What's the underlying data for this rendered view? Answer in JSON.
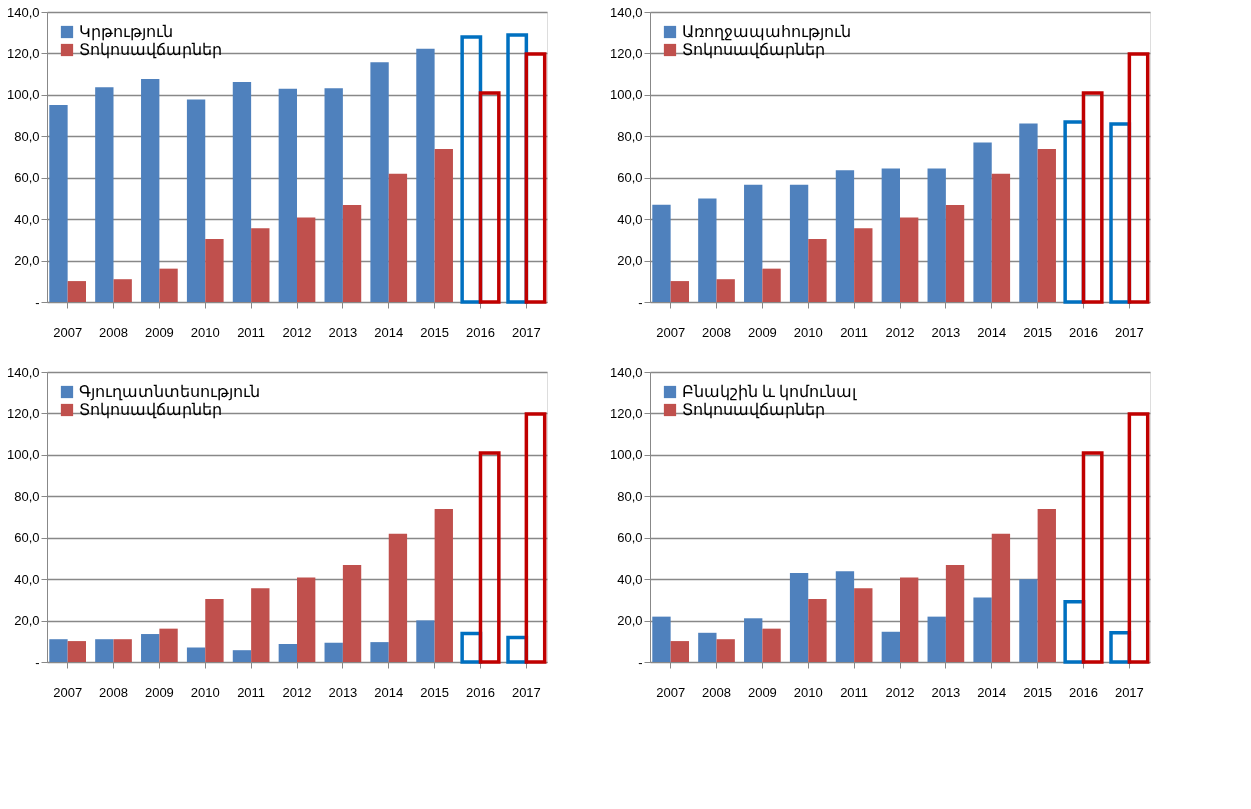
{
  "chart_data": [
    {
      "type": "bar",
      "categories": [
        "2007",
        "2008",
        "2009",
        "2010",
        "2011",
        "2012",
        "2013",
        "2014",
        "2015",
        "2016",
        "2017"
      ],
      "series": [
        {
          "name": "Կրթություն",
          "color": "#4f81bd",
          "colors": [
            "#4f81bd",
            "#4f81bd",
            "#4f81bd",
            "#4f81bd",
            "#4f81bd",
            "#4f81bd",
            "#4f81bd",
            "#4f81bd",
            "#4f81bd",
            "#0070c0",
            "#0070c0"
          ],
          "values": [
            95.1,
            103.7,
            107.6,
            97.7,
            106.2,
            102.9,
            103.2,
            115.8,
            122.3,
            127.9,
            128.9
          ]
        },
        {
          "name": "Տոկոսավճարներ",
          "color": "#c0504d",
          "colors": [
            "#c0504d",
            "#c0504d",
            "#c0504d",
            "#c0504d",
            "#c0504d",
            "#c0504d",
            "#c0504d",
            "#c0504d",
            "#c0504d",
            "#c00000",
            "#c00000"
          ],
          "values": [
            10.1,
            11.0,
            16.1,
            30.4,
            35.6,
            40.8,
            46.8,
            61.9,
            73.9,
            100.9,
            119.7
          ]
        }
      ],
      "ylim": [
        0,
        140
      ],
      "yticks": [
        {
          "value": 0,
          "label": "-"
        },
        {
          "value": 20,
          "label": "20,0"
        },
        {
          "value": 40,
          "label": "40,0"
        },
        {
          "value": 60,
          "label": "60,0"
        },
        {
          "value": 80,
          "label": "80,0"
        },
        {
          "value": 100,
          "label": "100,0"
        },
        {
          "value": 120,
          "label": "120,0"
        },
        {
          "value": 140,
          "label": "140,0"
        }
      ],
      "grid": "y",
      "legend": "top left"
    },
    {
      "type": "bar",
      "categories": [
        "2007",
        "2008",
        "2009",
        "2010",
        "2011",
        "2012",
        "2013",
        "2014",
        "2015",
        "2016",
        "2017"
      ],
      "series": [
        {
          "name": "Առողջապահություն",
          "color": "#4f81bd",
          "colors": [
            "#4f81bd",
            "#4f81bd",
            "#4f81bd",
            "#4f81bd",
            "#4f81bd",
            "#4f81bd",
            "#4f81bd",
            "#4f81bd",
            "#4f81bd",
            "#0070c0",
            "#0070c0"
          ],
          "values": [
            46.9,
            50.0,
            56.6,
            56.6,
            63.6,
            64.5,
            64.5,
            77.0,
            86.2,
            86.9,
            85.9
          ]
        },
        {
          "name": "Տոկոսավճարներ",
          "color": "#c0504d",
          "colors": [
            "#c0504d",
            "#c0504d",
            "#c0504d",
            "#c0504d",
            "#c0504d",
            "#c0504d",
            "#c0504d",
            "#c0504d",
            "#c0504d",
            "#c00000",
            "#c00000"
          ],
          "values": [
            10.1,
            11.0,
            16.1,
            30.4,
            35.6,
            40.8,
            46.8,
            61.9,
            73.9,
            100.9,
            119.7
          ]
        }
      ],
      "ylim": [
        0,
        140
      ],
      "yticks": [
        {
          "value": 0,
          "label": "-"
        },
        {
          "value": 20,
          "label": "20,0"
        },
        {
          "value": 40,
          "label": "40,0"
        },
        {
          "value": 60,
          "label": "60,0"
        },
        {
          "value": 80,
          "label": "80,0"
        },
        {
          "value": 100,
          "label": "100,0"
        },
        {
          "value": 120,
          "label": "120,0"
        },
        {
          "value": 140,
          "label": "140,0"
        }
      ],
      "grid": "y",
      "legend": "top left"
    },
    {
      "type": "bar",
      "categories": [
        "2007",
        "2008",
        "2009",
        "2010",
        "2011",
        "2012",
        "2013",
        "2014",
        "2015",
        "2016",
        "2017"
      ],
      "series": [
        {
          "name": "Գյուղատնտեսություն",
          "color": "#4f81bd",
          "colors": [
            "#4f81bd",
            "#4f81bd",
            "#4f81bd",
            "#4f81bd",
            "#4f81bd",
            "#4f81bd",
            "#4f81bd",
            "#4f81bd",
            "#4f81bd",
            "#0070c0",
            "#0070c0"
          ],
          "values": [
            11.0,
            11.0,
            13.5,
            7.0,
            5.7,
            8.7,
            9.3,
            9.6,
            20.1,
            13.7,
            11.8
          ]
        },
        {
          "name": "Տոկոսավճարներ",
          "color": "#c0504d",
          "colors": [
            "#c0504d",
            "#c0504d",
            "#c0504d",
            "#c0504d",
            "#c0504d",
            "#c0504d",
            "#c0504d",
            "#c0504d",
            "#c0504d",
            "#c00000",
            "#c00000"
          ],
          "values": [
            10.1,
            11.0,
            16.1,
            30.4,
            35.6,
            40.8,
            46.8,
            61.9,
            73.9,
            100.9,
            119.7
          ]
        }
      ],
      "ylim": [
        0,
        140
      ],
      "yticks": [
        {
          "value": 0,
          "label": "-"
        },
        {
          "value": 20,
          "label": "20,0"
        },
        {
          "value": 40,
          "label": "40,0"
        },
        {
          "value": 60,
          "label": "60,0"
        },
        {
          "value": 80,
          "label": "80,0"
        },
        {
          "value": 100,
          "label": "100,0"
        },
        {
          "value": 120,
          "label": "120,0"
        },
        {
          "value": 140,
          "label": "140,0"
        }
      ],
      "grid": "y",
      "legend": "top left"
    },
    {
      "type": "bar",
      "categories": [
        "2007",
        "2008",
        "2009",
        "2010",
        "2011",
        "2012",
        "2013",
        "2014",
        "2015",
        "2016",
        "2017"
      ],
      "series": [
        {
          "name": "Բնակշին և կոմունալ",
          "color": "#4f81bd",
          "colors": [
            "#4f81bd",
            "#4f81bd",
            "#4f81bd",
            "#4f81bd",
            "#4f81bd",
            "#4f81bd",
            "#4f81bd",
            "#4f81bd",
            "#4f81bd",
            "#0070c0",
            "#0070c0"
          ],
          "values": [
            21.9,
            14.1,
            21.1,
            43.0,
            43.8,
            14.6,
            21.9,
            31.1,
            39.9,
            29.1,
            14.1
          ]
        },
        {
          "name": "Տոկոսավճարներ",
          "color": "#c0504d",
          "colors": [
            "#c0504d",
            "#c0504d",
            "#c0504d",
            "#c0504d",
            "#c0504d",
            "#c0504d",
            "#c0504d",
            "#c0504d",
            "#c0504d",
            "#c00000",
            "#c00000"
          ],
          "values": [
            10.1,
            11.0,
            16.1,
            30.4,
            35.6,
            40.8,
            46.8,
            61.9,
            73.9,
            100.9,
            119.7
          ]
        }
      ],
      "ylim": [
        0,
        140
      ],
      "yticks": [
        {
          "value": 0,
          "label": "-"
        },
        {
          "value": 20,
          "label": "20,0"
        },
        {
          "value": 40,
          "label": "40,0"
        },
        {
          "value": 60,
          "label": "60,0"
        },
        {
          "value": 80,
          "label": "80,0"
        },
        {
          "value": 100,
          "label": "100,0"
        },
        {
          "value": 120,
          "label": "120,0"
        },
        {
          "value": 140,
          "label": "140,0"
        }
      ],
      "grid": "y",
      "legend": "top left"
    }
  ]
}
